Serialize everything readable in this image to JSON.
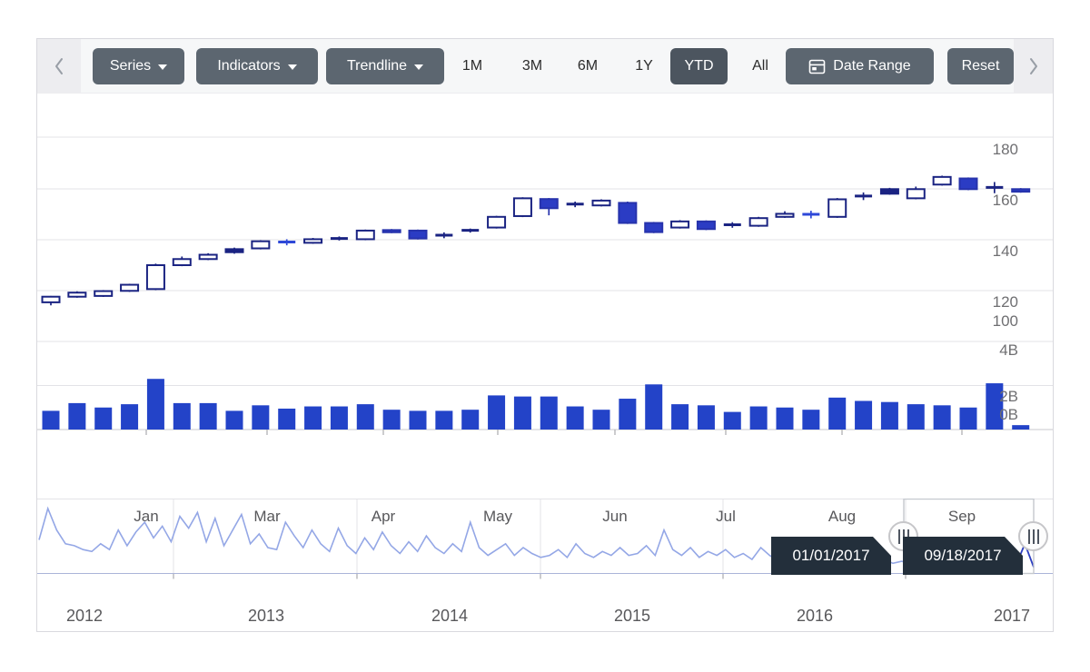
{
  "toolbar": {
    "scroll_left_icon": "chevron-left",
    "scroll_right_icon": "chevron-right",
    "dropdowns": [
      {
        "label": "Series"
      },
      {
        "label": "Indicators"
      },
      {
        "label": "Trendline"
      }
    ],
    "periods": [
      {
        "label": "1M",
        "selected": false
      },
      {
        "label": "3M",
        "selected": false
      },
      {
        "label": "6M",
        "selected": false
      },
      {
        "label": "1Y",
        "selected": false
      },
      {
        "label": "YTD",
        "selected": true
      },
      {
        "label": "All",
        "selected": false
      }
    ],
    "date_range_label": "Date Range",
    "reset_label": "Reset"
  },
  "colors": {
    "toolbar_button": "#5c6670",
    "toolbar_button_selected": "#4c555f",
    "bull_stroke": "#1a2382",
    "bear_fill": "#2b3cc4",
    "bear_stroke": "#2733ac",
    "doji_blue": "#2e48d8",
    "volume_bar": "#2343c8",
    "nav_line_light": "#94a7e6",
    "nav_line_dark": "#141a4e",
    "nav_line_tail": "#2d3fc0",
    "gridline": "#e3e3e7",
    "axis_line": "#c9c9cd",
    "label_gray": "#6f6f72"
  },
  "chart_data": [
    {
      "id": "price",
      "type": "candlestick",
      "y_axis": {
        "min": 100,
        "max": 198,
        "tick_values": [
          180,
          160,
          140,
          120,
          100
        ],
        "tick_labels": [
          "180",
          "160",
          "140",
          "120",
          "100"
        ],
        "position": "right",
        "grid": true
      },
      "x_axis": {
        "tick_labels": [
          "Jan",
          "Mar",
          "Apr",
          "May",
          "Jun",
          "Jul",
          "Aug",
          "Sep"
        ]
      },
      "candles": [
        [
          115.4,
          117.9,
          114.2,
          117.6,
          "bull"
        ],
        [
          117.6,
          119.7,
          117.2,
          119.2,
          "bull"
        ],
        [
          117.9,
          120.2,
          117.5,
          119.8,
          "bull"
        ],
        [
          119.9,
          122.7,
          119.5,
          122.3,
          "bull"
        ],
        [
          120.6,
          130.6,
          120.2,
          130.0,
          "bull"
        ],
        [
          130.0,
          133.4,
          129.6,
          132.4,
          "bull"
        ],
        [
          132.4,
          134.7,
          132.0,
          134.1,
          "bull"
        ],
        [
          136.3,
          136.9,
          134.5,
          135.1,
          "bear-navy"
        ],
        [
          136.6,
          139.8,
          136.2,
          139.4,
          "bull"
        ],
        [
          139.0,
          140.2,
          137.8,
          139.1,
          "doji-blue"
        ],
        [
          138.8,
          140.7,
          138.4,
          140.2,
          "bull"
        ],
        [
          140.5,
          141.3,
          139.7,
          140.5,
          "doji-navy"
        ],
        [
          140.2,
          144.0,
          139.8,
          143.6,
          "bull"
        ],
        [
          143.8,
          144.2,
          142.6,
          143.0,
          "bear"
        ],
        [
          143.6,
          144.0,
          140.1,
          140.5,
          "bear"
        ],
        [
          141.7,
          142.9,
          140.6,
          141.8,
          "doji-navy"
        ],
        [
          143.6,
          144.4,
          142.8,
          143.7,
          "doji-navy"
        ],
        [
          144.8,
          149.4,
          144.4,
          149.0,
          "bull"
        ],
        [
          149.3,
          156.7,
          148.9,
          156.3,
          "bull"
        ],
        [
          156.0,
          156.4,
          149.6,
          152.4,
          "bear"
        ],
        [
          153.9,
          155.0,
          152.8,
          154.0,
          "doji-navy"
        ],
        [
          153.5,
          155.9,
          153.1,
          155.4,
          "bull"
        ],
        [
          154.5,
          155.0,
          146.2,
          146.6,
          "bear"
        ],
        [
          146.6,
          147.0,
          142.6,
          143.0,
          "bear"
        ],
        [
          144.8,
          147.7,
          144.4,
          147.2,
          "bull"
        ],
        [
          147.2,
          147.6,
          143.8,
          144.2,
          "bear"
        ],
        [
          145.8,
          146.9,
          144.7,
          145.9,
          "doji-navy"
        ],
        [
          145.5,
          149.0,
          145.1,
          148.5,
          "bull"
        ],
        [
          149.0,
          151.2,
          148.6,
          150.2,
          "bull"
        ],
        [
          149.9,
          151.4,
          148.4,
          150.0,
          "doji-blue"
        ],
        [
          149.0,
          156.4,
          148.6,
          155.9,
          "bull"
        ],
        [
          157.1,
          158.6,
          155.6,
          157.2,
          "doji-navy"
        ],
        [
          159.9,
          160.4,
          157.7,
          158.1,
          "bear-navy"
        ],
        [
          156.3,
          160.9,
          155.9,
          159.9,
          "bull"
        ],
        [
          161.7,
          165.2,
          161.3,
          164.7,
          "bull"
        ],
        [
          164.1,
          164.5,
          159.5,
          159.9,
          "bear"
        ],
        [
          160.5,
          162.7,
          158.3,
          160.6,
          "doji-navy"
        ],
        [
          159.9,
          160.3,
          158.5,
          158.9,
          "bear"
        ]
      ]
    },
    {
      "id": "volume",
      "type": "bar",
      "unit": "B",
      "y_axis": {
        "min": 0,
        "max": 4,
        "tick_labels": [
          "4B",
          "2B",
          "0B"
        ],
        "tick_values": [
          4,
          2,
          0
        ],
        "position": "right",
        "grid": true
      },
      "values": [
        0.85,
        1.2,
        1.0,
        1.15,
        2.3,
        1.2,
        1.2,
        0.85,
        1.1,
        0.95,
        1.05,
        1.05,
        1.15,
        0.9,
        0.85,
        0.85,
        0.9,
        1.55,
        1.5,
        1.5,
        1.05,
        0.9,
        1.4,
        2.05,
        1.15,
        1.1,
        0.8,
        1.05,
        1.0,
        0.9,
        1.45,
        1.3,
        1.25,
        1.15,
        1.1,
        1.0,
        2.1,
        0.2
      ]
    },
    {
      "id": "navigator",
      "type": "line",
      "unit": "B",
      "x_axis": {
        "tick_labels": [
          "2012",
          "2013",
          "2014",
          "2015",
          "2016",
          "2017"
        ]
      },
      "values": [
        1.7,
        3.3,
        2.2,
        1.5,
        1.4,
        1.2,
        1.1,
        1.5,
        1.2,
        2.2,
        1.4,
        2.1,
        2.6,
        1.8,
        2.4,
        1.6,
        2.9,
        2.3,
        3.1,
        1.6,
        2.8,
        1.4,
        2.2,
        3.0,
        1.5,
        2.0,
        1.3,
        1.2,
        2.6,
        1.9,
        1.3,
        2.2,
        1.5,
        1.1,
        2.3,
        1.4,
        1.0,
        1.8,
        1.2,
        2.1,
        1.4,
        1.0,
        1.6,
        1.1,
        1.9,
        1.3,
        1.0,
        1.5,
        1.1,
        2.6,
        1.3,
        0.9,
        1.2,
        1.5,
        0.9,
        1.3,
        1.0,
        0.8,
        0.9,
        1.2,
        0.8,
        1.5,
        1.0,
        0.8,
        1.1,
        0.9,
        1.3,
        0.9,
        1.0,
        1.4,
        0.9,
        2.2,
        1.2,
        0.9,
        1.3,
        0.8,
        1.1,
        0.9,
        1.2,
        0.8,
        1.0,
        0.7,
        1.3,
        0.9,
        0.6,
        0.8,
        0.7,
        0.9,
        0.6,
        0.8,
        0.5,
        0.7,
        0.6,
        0.8,
        0.5,
        0.6,
        0.7,
        0.5,
        0.6,
        0.5,
        0.6,
        0.5,
        0.7,
        0.5,
        0.6,
        0.4,
        0.5,
        0.6,
        0.5,
        0.4,
        0.5,
        0.4,
        1.5,
        0.3
      ]
    }
  ],
  "navigator": {
    "range_start_tooltip": "01/01/2017",
    "range_end_tooltip": "09/18/2017",
    "years": [
      "2012",
      "2013",
      "2014",
      "2015",
      "2016",
      "2017"
    ]
  }
}
